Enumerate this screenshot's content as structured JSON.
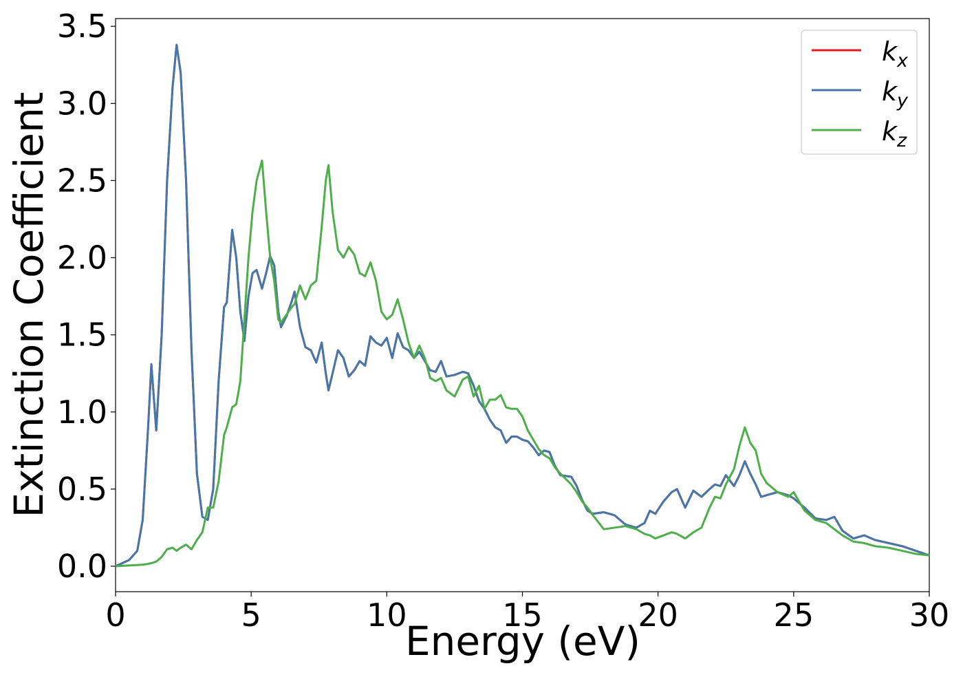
{
  "chart_data": {
    "type": "line",
    "xlabel": "Energy (eV)",
    "ylabel": "Extinction Coefficient",
    "xlim": [
      0,
      30
    ],
    "ylim": [
      -0.165,
      3.55
    ],
    "xticks": [
      0,
      5,
      10,
      15,
      20,
      25,
      30
    ],
    "yticks": [
      {
        "value": 0,
        "label": "0.0"
      },
      0.5,
      {
        "value": 1,
        "label": "1.0"
      },
      1.5,
      {
        "value": 2,
        "label": "2.0"
      },
      2.5,
      {
        "value": 3,
        "label": "3.0"
      },
      3.5
    ],
    "legend": "upper right",
    "x": [
      0,
      0.5,
      0.8,
      1.0,
      1.2,
      1.32,
      1.5,
      1.7,
      1.9,
      2.1,
      2.25,
      2.4,
      2.6,
      2.8,
      3.0,
      3.2,
      3.4,
      3.6,
      3.8,
      4.0,
      4.1,
      4.3,
      4.45,
      4.6,
      4.75,
      4.9,
      5.05,
      5.2,
      5.4,
      5.55,
      5.7,
      5.85,
      6.0,
      6.1,
      6.3,
      6.5,
      6.6,
      6.8,
      7.0,
      7.2,
      7.4,
      7.6,
      7.75,
      7.85,
      8.0,
      8.2,
      8.4,
      8.6,
      8.8,
      9.0,
      9.2,
      9.4,
      9.6,
      9.8,
      10.0,
      10.2,
      10.4,
      10.6,
      10.8,
      11.0,
      11.2,
      11.4,
      11.6,
      11.8,
      12.0,
      12.2,
      12.5,
      12.8,
      13.0,
      13.2,
      13.4,
      13.6,
      13.8,
      14.0,
      14.2,
      14.4,
      14.6,
      14.8,
      15.0,
      15.2,
      15.4,
      15.6,
      15.8,
      16.0,
      16.2,
      16.4,
      16.8,
      17.0,
      17.2,
      17.4,
      17.6,
      18.0,
      18.4,
      18.8,
      19.2,
      19.5,
      19.7,
      19.9,
      20.2,
      20.5,
      20.7,
      21.0,
      21.3,
      21.6,
      21.9,
      22.1,
      22.3,
      22.5,
      22.8,
      23.0,
      23.2,
      23.4,
      23.6,
      23.8,
      24.0,
      24.4,
      24.8,
      25.0,
      25.4,
      25.8,
      26.2,
      26.5,
      26.8,
      27.2,
      27.6,
      28.0,
      28.5,
      29.0,
      29.5,
      30.0
    ],
    "series": [
      {
        "name": "kx",
        "color": "#e41a1c",
        "values": [
          0,
          0.04,
          0.1,
          0.3,
          0.9,
          1.31,
          0.88,
          1.5,
          2.5,
          3.1,
          3.38,
          3.2,
          2.5,
          1.4,
          0.6,
          0.32,
          0.3,
          0.5,
          1.2,
          1.68,
          1.71,
          2.18,
          2.0,
          1.65,
          1.46,
          1.75,
          1.9,
          1.92,
          1.8,
          1.9,
          2.01,
          1.95,
          1.65,
          1.55,
          1.62,
          1.72,
          1.78,
          1.55,
          1.42,
          1.4,
          1.32,
          1.45,
          1.25,
          1.14,
          1.25,
          1.4,
          1.35,
          1.23,
          1.27,
          1.33,
          1.3,
          1.49,
          1.45,
          1.43,
          1.48,
          1.35,
          1.51,
          1.42,
          1.4,
          1.35,
          1.39,
          1.33,
          1.27,
          1.26,
          1.33,
          1.23,
          1.24,
          1.26,
          1.25,
          1.17,
          1.07,
          1.02,
          0.95,
          0.9,
          0.88,
          0.8,
          0.84,
          0.84,
          0.82,
          0.81,
          0.77,
          0.72,
          0.75,
          0.74,
          0.65,
          0.59,
          0.58,
          0.52,
          0.43,
          0.36,
          0.34,
          0.35,
          0.33,
          0.27,
          0.25,
          0.28,
          0.36,
          0.34,
          0.42,
          0.48,
          0.5,
          0.38,
          0.49,
          0.45,
          0.5,
          0.53,
          0.52,
          0.59,
          0.52,
          0.59,
          0.68,
          0.6,
          0.53,
          0.45,
          0.46,
          0.48,
          0.46,
          0.44,
          0.38,
          0.31,
          0.3,
          0.32,
          0.23,
          0.18,
          0.2,
          0.17,
          0.15,
          0.13,
          0.1,
          0.07
        ]
      },
      {
        "name": "ky",
        "color": "#4477aa",
        "values": [
          0,
          0.04,
          0.1,
          0.3,
          0.9,
          1.31,
          0.88,
          1.5,
          2.5,
          3.1,
          3.38,
          3.2,
          2.5,
          1.4,
          0.6,
          0.32,
          0.3,
          0.5,
          1.2,
          1.68,
          1.71,
          2.18,
          2.0,
          1.65,
          1.46,
          1.75,
          1.9,
          1.92,
          1.8,
          1.9,
          2.01,
          1.95,
          1.65,
          1.55,
          1.62,
          1.72,
          1.78,
          1.55,
          1.42,
          1.4,
          1.32,
          1.45,
          1.25,
          1.14,
          1.25,
          1.4,
          1.35,
          1.23,
          1.27,
          1.33,
          1.3,
          1.49,
          1.45,
          1.43,
          1.48,
          1.35,
          1.51,
          1.42,
          1.4,
          1.35,
          1.39,
          1.33,
          1.27,
          1.26,
          1.33,
          1.23,
          1.24,
          1.26,
          1.25,
          1.17,
          1.07,
          1.02,
          0.95,
          0.9,
          0.88,
          0.8,
          0.84,
          0.84,
          0.82,
          0.81,
          0.77,
          0.72,
          0.75,
          0.74,
          0.65,
          0.59,
          0.58,
          0.52,
          0.43,
          0.36,
          0.34,
          0.35,
          0.33,
          0.27,
          0.25,
          0.28,
          0.36,
          0.34,
          0.42,
          0.48,
          0.5,
          0.38,
          0.49,
          0.45,
          0.5,
          0.53,
          0.52,
          0.59,
          0.52,
          0.59,
          0.68,
          0.6,
          0.53,
          0.45,
          0.46,
          0.48,
          0.46,
          0.44,
          0.38,
          0.31,
          0.3,
          0.32,
          0.23,
          0.18,
          0.2,
          0.17,
          0.15,
          0.13,
          0.1,
          0.07
        ]
      },
      {
        "name": "kz",
        "color": "#4daf4a",
        "values": [
          0,
          0.005,
          0.008,
          0.01,
          0.015,
          0.02,
          0.03,
          0.06,
          0.11,
          0.12,
          0.1,
          0.12,
          0.14,
          0.11,
          0.17,
          0.22,
          0.38,
          0.38,
          0.55,
          0.85,
          0.9,
          1.03,
          1.05,
          1.2,
          1.6,
          2.0,
          2.3,
          2.5,
          2.63,
          2.3,
          2.0,
          1.85,
          1.6,
          1.58,
          1.63,
          1.68,
          1.7,
          1.82,
          1.73,
          1.82,
          1.85,
          2.2,
          2.5,
          2.6,
          2.3,
          2.05,
          2.0,
          2.07,
          2.02,
          1.9,
          1.88,
          1.97,
          1.85,
          1.65,
          1.6,
          1.63,
          1.73,
          1.6,
          1.45,
          1.35,
          1.43,
          1.35,
          1.22,
          1.2,
          1.22,
          1.14,
          1.1,
          1.21,
          1.23,
          1.1,
          1.17,
          1.02,
          1.08,
          1.08,
          1.11,
          1.03,
          1.02,
          1.02,
          0.97,
          0.88,
          0.82,
          0.76,
          0.72,
          0.7,
          0.64,
          0.6,
          0.53,
          0.48,
          0.42,
          0.38,
          0.33,
          0.24,
          0.25,
          0.26,
          0.24,
          0.21,
          0.2,
          0.18,
          0.2,
          0.22,
          0.21,
          0.18,
          0.22,
          0.25,
          0.38,
          0.45,
          0.44,
          0.53,
          0.63,
          0.78,
          0.9,
          0.8,
          0.75,
          0.6,
          0.54,
          0.48,
          0.45,
          0.48,
          0.36,
          0.3,
          0.28,
          0.24,
          0.2,
          0.16,
          0.15,
          0.13,
          0.12,
          0.1,
          0.08,
          0.07
        ]
      }
    ]
  }
}
